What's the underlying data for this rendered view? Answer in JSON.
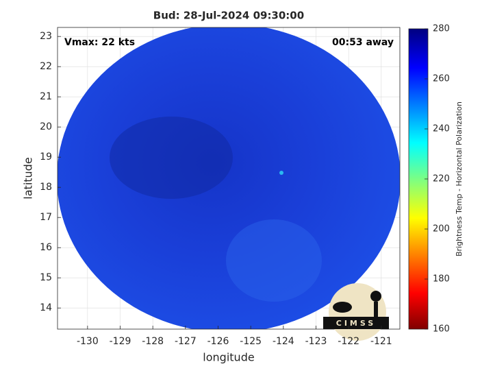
{
  "chart_data": {
    "type": "image",
    "title": "Bud: 28-Jul-2024 09:30:00",
    "annotations": [
      "Vmax: 22 kts",
      "00:53 away"
    ],
    "xlabel": "longitude",
    "ylabel": "latitude",
    "xlim": [
      -130.92,
      -120.43
    ],
    "ylim": [
      13.3,
      23.3
    ],
    "xticks": [
      -130,
      -129,
      -128,
      -127,
      -126,
      -125,
      -124,
      -123,
      -122,
      -121
    ],
    "yticks": [
      14,
      15,
      16,
      17,
      18,
      19,
      20,
      21,
      22,
      23
    ],
    "grid": true,
    "colorbar": {
      "label": "Brightness Temp - Horizontal Polarization",
      "clim": [
        160,
        280
      ],
      "ticks": [
        160,
        180,
        200,
        220,
        240,
        260,
        280
      ]
    },
    "logo": "CIMSS"
  }
}
